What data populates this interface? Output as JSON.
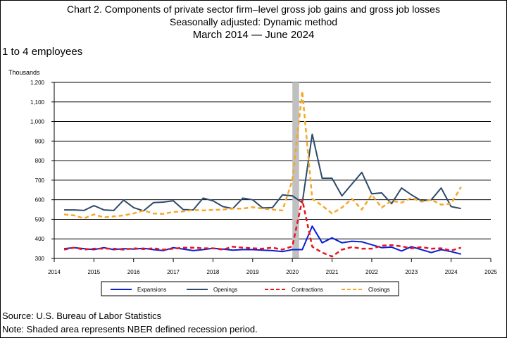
{
  "header": {
    "title_line1": "Chart 2. Components of private sector firm–level gross job gains and gross job losses",
    "title_line2": "Seasonally adjusted: Dynamic method",
    "title_line3": "March 2014 — June 2024",
    "subtitle": "1 to 4 employees",
    "units": "Thousands"
  },
  "footer": {
    "source": "Source: U.S. Bureau of Labor Statistics",
    "note": "Note: Shaded area represents NBER defined recession period."
  },
  "colors": {
    "expansions": "#0a1fd6",
    "openings": "#2f4a6b",
    "contractions": "#e8161b",
    "closings": "#f4a82a",
    "recession": "#c0c0c0"
  },
  "chart_data": {
    "type": "line",
    "title": "Chart 2. Components of private sector firm–level gross job gains and gross job losses",
    "ylabel": "Thousands",
    "xlim": [
      2014,
      2025
    ],
    "ylim": [
      300,
      1200
    ],
    "x_ticks": [
      "2014",
      "2015",
      "2016",
      "2017",
      "2018",
      "2019",
      "2020",
      "2021",
      "2022",
      "2023",
      "2024",
      "2025"
    ],
    "y_ticks": [
      "300",
      "400",
      "500",
      "600",
      "700",
      "800",
      "900",
      "1,000",
      "1,100",
      "1,200"
    ],
    "grid": "horizontal",
    "legend_position": "bottom",
    "recession": [
      2020.0,
      2020.17
    ],
    "x": [
      2014.25,
      2014.5,
      2014.75,
      2015.0,
      2015.25,
      2015.5,
      2015.75,
      2016.0,
      2016.25,
      2016.5,
      2016.75,
      2017.0,
      2017.25,
      2017.5,
      2017.75,
      2018.0,
      2018.25,
      2018.5,
      2018.75,
      2019.0,
      2019.25,
      2019.5,
      2019.75,
      2020.0,
      2020.25,
      2020.5,
      2020.75,
      2021.0,
      2021.25,
      2021.5,
      2021.75,
      2022.0,
      2022.25,
      2022.5,
      2022.75,
      2023.0,
      2023.25,
      2023.5,
      2023.75,
      2024.0,
      2024.25
    ],
    "series": [
      {
        "name": "Expansions",
        "style": "solid",
        "color": "#0a1fd6",
        "values": [
          350,
          355,
          350,
          345,
          355,
          345,
          350,
          348,
          352,
          345,
          340,
          355,
          348,
          340,
          345,
          352,
          348,
          342,
          345,
          345,
          342,
          340,
          335,
          345,
          345,
          465,
          380,
          405,
          380,
          388,
          385,
          370,
          355,
          358,
          338,
          360,
          345,
          330,
          345,
          335,
          322
        ]
      },
      {
        "name": "Openings",
        "style": "solid",
        "color": "#2f4a6b",
        "values": [
          548,
          548,
          545,
          570,
          548,
          545,
          598,
          560,
          543,
          585,
          588,
          595,
          550,
          548,
          608,
          595,
          565,
          555,
          608,
          600,
          558,
          560,
          625,
          620,
          585,
          935,
          710,
          710,
          620,
          680,
          740,
          630,
          635,
          580,
          660,
          625,
          595,
          600,
          660,
          565,
          555
        ]
      },
      {
        "name": "Contractions",
        "style": "dashed",
        "color": "#e8161b",
        "values": [
          345,
          355,
          345,
          350,
          350,
          350,
          345,
          352,
          348,
          352,
          345,
          350,
          355,
          355,
          352,
          352,
          345,
          360,
          355,
          352,
          350,
          355,
          345,
          362,
          600,
          360,
          330,
          310,
          345,
          358,
          350,
          350,
          365,
          368,
          362,
          352,
          358,
          350,
          352,
          340,
          355
        ]
      },
      {
        "name": "Closings",
        "style": "dashed",
        "color": "#f4a82a",
        "values": [
          525,
          520,
          505,
          525,
          510,
          515,
          520,
          530,
          545,
          530,
          528,
          538,
          540,
          548,
          545,
          548,
          550,
          555,
          555,
          562,
          555,
          550,
          545,
          700,
          1155,
          605,
          570,
          530,
          560,
          605,
          550,
          625,
          560,
          595,
          585,
          610,
          590,
          600,
          575,
          580,
          665
        ]
      }
    ]
  },
  "legend": {
    "items": [
      {
        "label": "Expansions",
        "color": "#0a1fd6",
        "style": "solid"
      },
      {
        "label": "Openings",
        "color": "#2f4a6b",
        "style": "solid"
      },
      {
        "label": "Contractions",
        "color": "#e8161b",
        "style": "dashed"
      },
      {
        "label": "Closings",
        "color": "#f4a82a",
        "style": "dashed"
      }
    ]
  }
}
